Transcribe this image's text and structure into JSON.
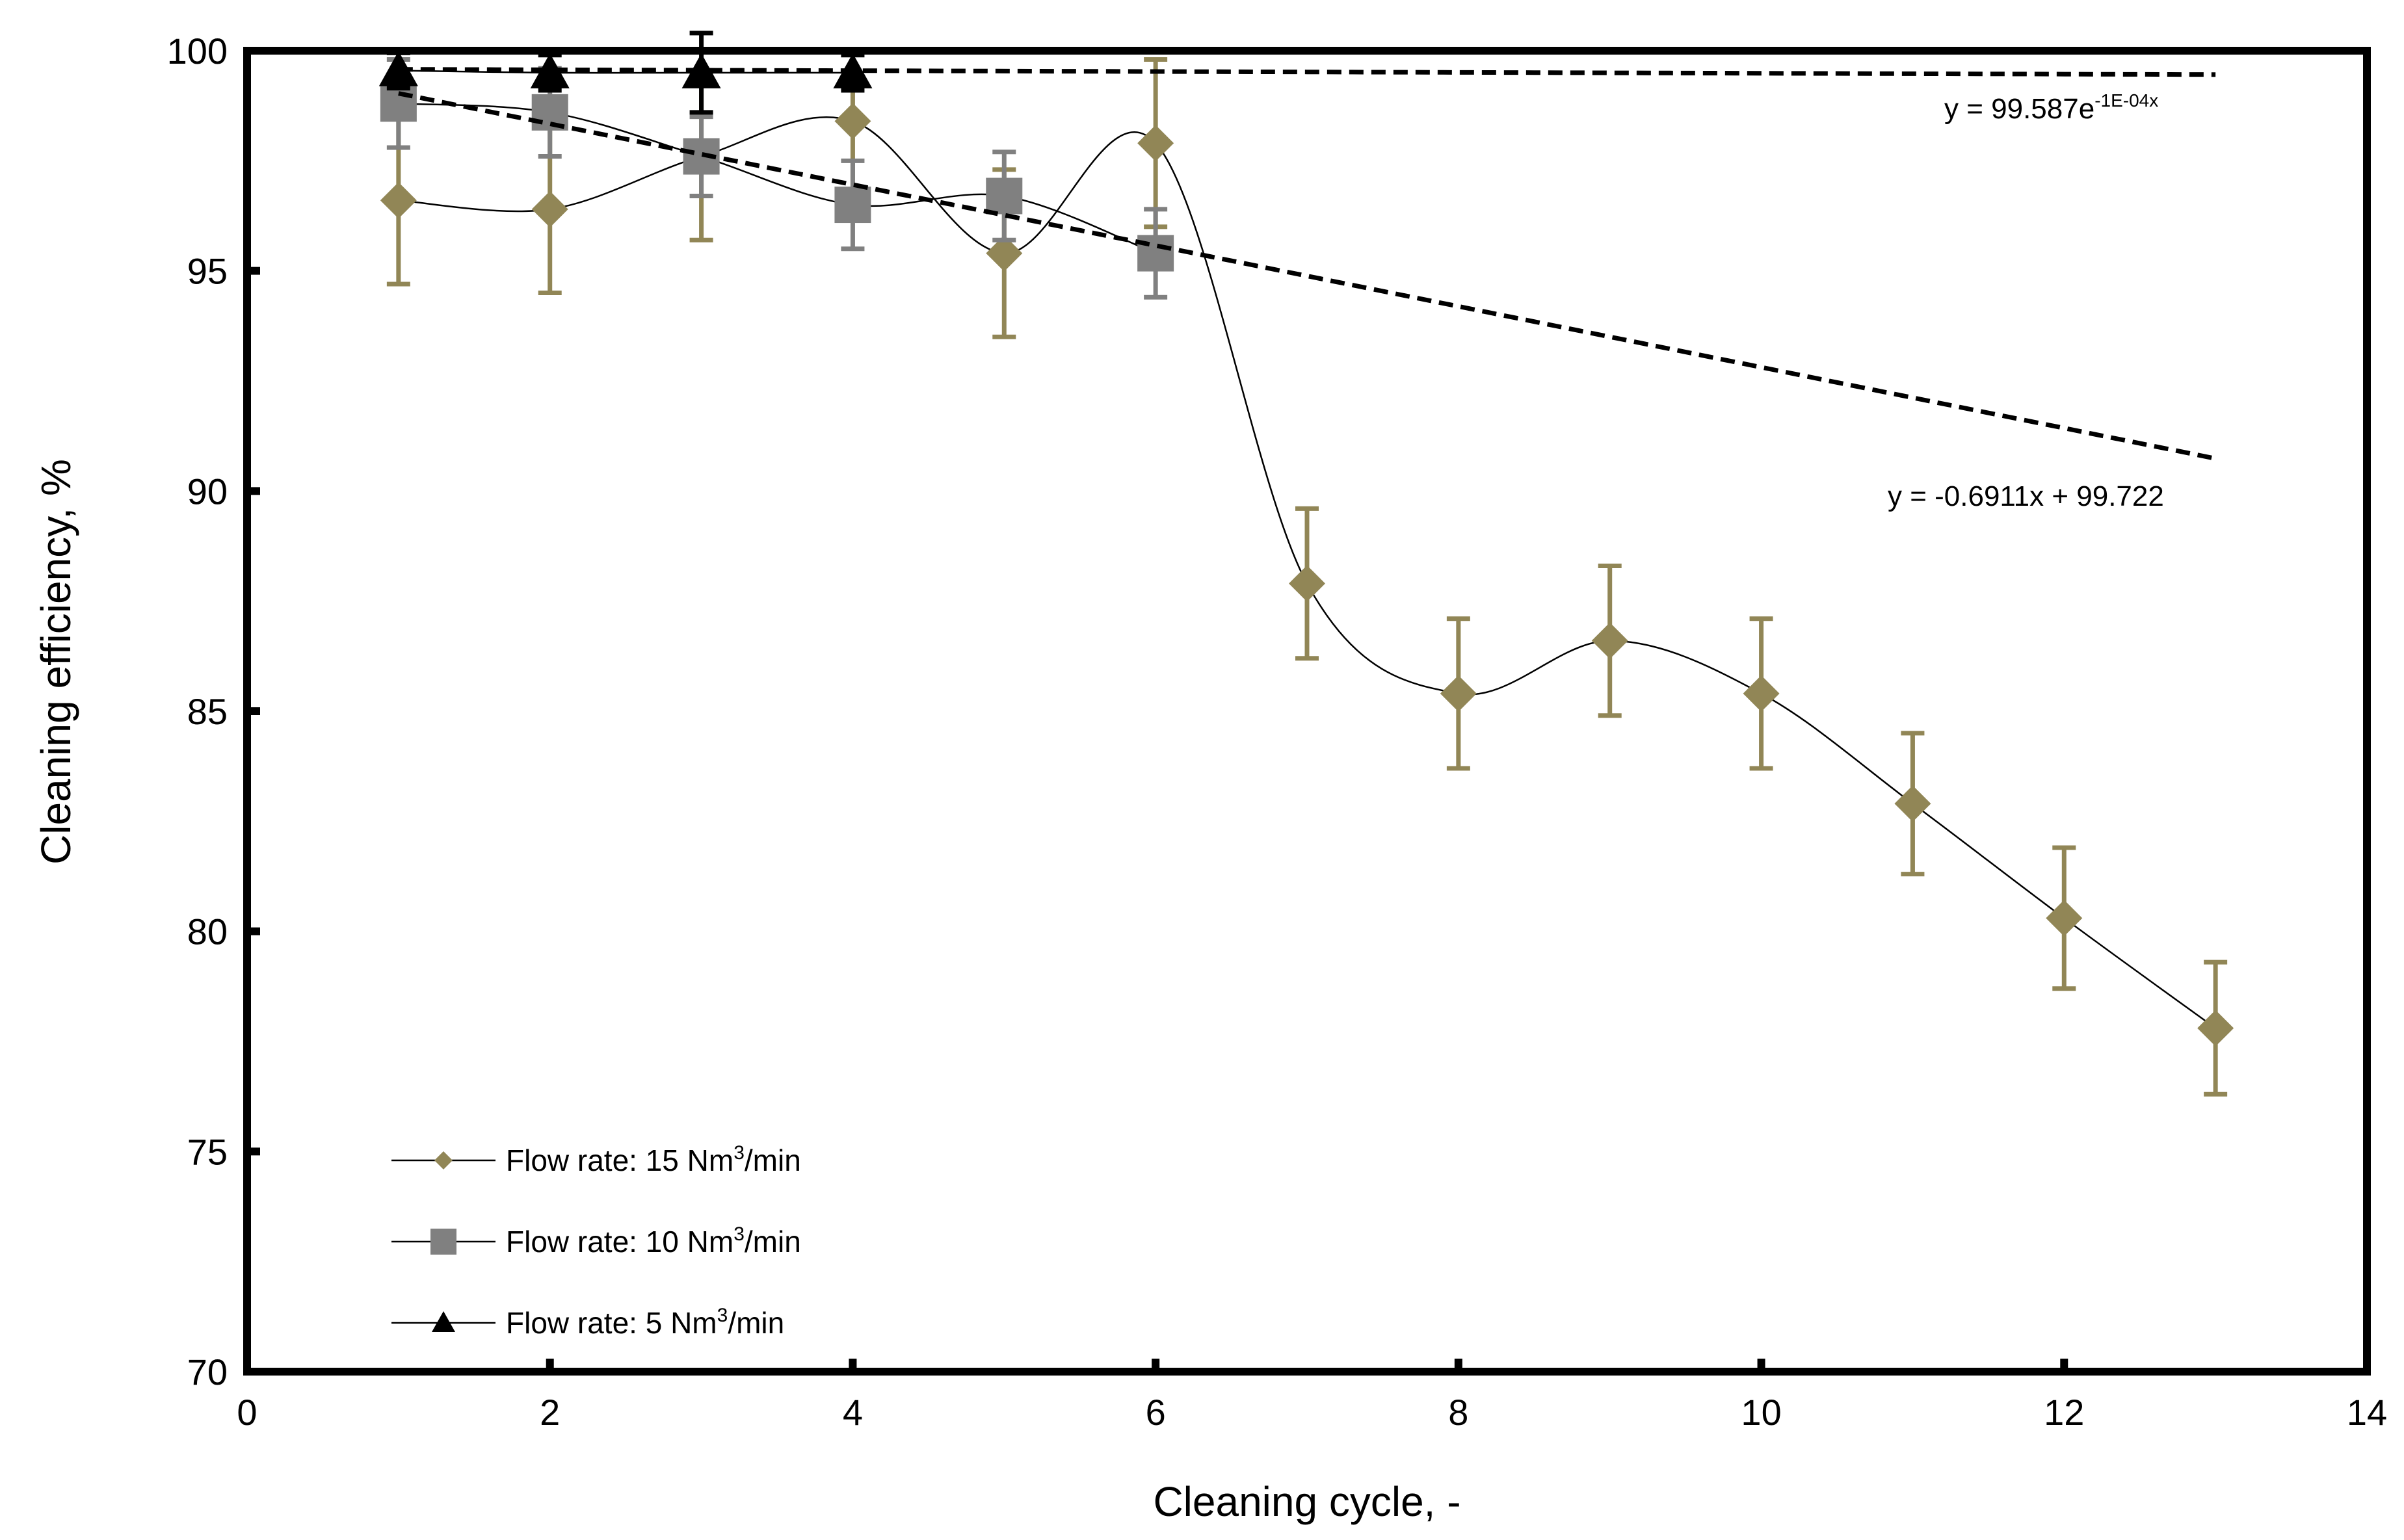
{
  "chart_data": {
    "type": "line",
    "title": "",
    "xlabel": "Cleaning cycle, -",
    "ylabel": "Cleaning efficiency, %",
    "xlim": [
      0,
      14
    ],
    "ylim": [
      70,
      100
    ],
    "xticks": [
      0,
      2,
      4,
      6,
      8,
      10,
      12,
      14
    ],
    "yticks": [
      70,
      75,
      80,
      85,
      90,
      95,
      100
    ],
    "grid": false,
    "legend_position": "bottom-left",
    "colors": {
      "s15": "#918656",
      "s10": "#808080",
      "s5": "#000000",
      "trend": "#000000"
    },
    "series": [
      {
        "name_prefix": "Flow rate: 15  Nm",
        "name_sup": "3",
        "name_suffix": "/min",
        "marker": "diamond",
        "x": [
          1,
          2,
          3,
          4,
          5,
          6,
          7,
          8,
          9,
          10,
          11,
          12,
          13
        ],
        "values": [
          96.6,
          96.4,
          97.6,
          98.4,
          95.4,
          97.9,
          87.9,
          85.4,
          86.6,
          85.4,
          82.9,
          80.3,
          77.8
        ],
        "err": [
          1.9,
          1.9,
          1.9,
          1.6,
          1.9,
          1.9,
          1.7,
          1.7,
          1.7,
          1.7,
          1.6,
          1.6,
          1.5
        ]
      },
      {
        "name_prefix": "Flow rate: 10  Nm",
        "name_sup": "3",
        "name_suffix": "/min",
        "marker": "square",
        "x": [
          1,
          2,
          3,
          4,
          5,
          6
        ],
        "values": [
          98.8,
          98.6,
          97.6,
          96.5,
          96.7,
          95.4
        ],
        "err": [
          1.0,
          1.0,
          0.9,
          1.0,
          1.0,
          1.0
        ]
      },
      {
        "name_prefix": "Flow rate: 5 Nm",
        "name_sup": "3",
        "name_suffix": "/min",
        "marker": "triangle",
        "x": [
          1,
          2,
          3,
          4
        ],
        "values": [
          99.55,
          99.5,
          99.5,
          99.5
        ],
        "err": [
          0.4,
          0.4,
          0.9,
          0.4
        ]
      }
    ],
    "trendlines": [
      {
        "label_prefix": "y = 99.587e",
        "label_sup": "-1E-04x",
        "type": "exponential",
        "a": 99.587,
        "b": -0.0001,
        "x_range": [
          1,
          13
        ]
      },
      {
        "label": "y = -0.6911x + 99.722",
        "type": "linear",
        "slope": -0.6911,
        "intercept": 99.722,
        "x_range": [
          1,
          13
        ]
      }
    ]
  }
}
